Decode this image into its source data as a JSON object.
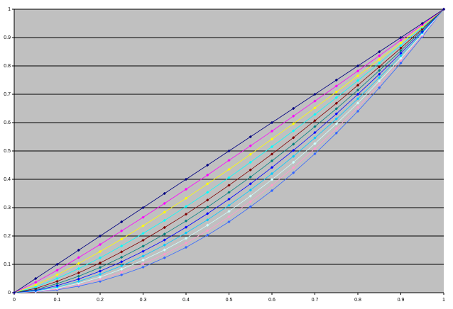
{
  "chart_data": {
    "type": "line",
    "x": [
      0,
      0.05,
      0.1,
      0.15,
      0.2,
      0.25,
      0.3,
      0.35,
      0.4,
      0.45,
      0.5,
      0.55,
      0.6,
      0.65,
      0.7,
      0.75,
      0.8,
      0.85,
      0.9,
      0.95,
      1
    ],
    "xlim": [
      0,
      1
    ],
    "xticks": [
      0,
      0.1,
      0.2,
      0.3,
      0.4,
      0.5,
      0.6,
      0.7,
      0.8,
      0.9,
      1
    ],
    "ylim": [
      0,
      1
    ],
    "yticks": [
      0,
      0.1,
      0.2,
      0.3,
      0.4,
      0.5,
      0.6,
      0.7,
      0.8,
      0.9,
      1
    ],
    "grid": true,
    "background": "#c0c0c0",
    "series": [
      {
        "color": "#000080",
        "values": [
          0,
          0.05,
          0.1,
          0.15,
          0.2,
          0.25,
          0.3,
          0.35,
          0.4,
          0.45,
          0.5,
          0.55,
          0.6,
          0.65,
          0.7,
          0.75,
          0.8,
          0.85,
          0.9,
          0.95,
          1
        ]
      },
      {
        "color": "#ff00ff",
        "values": [
          0,
          0.037,
          0.079,
          0.124,
          0.17,
          0.218,
          0.266,
          0.315,
          0.365,
          0.415,
          0.467,
          0.518,
          0.57,
          0.623,
          0.676,
          0.729,
          0.782,
          0.836,
          0.891,
          0.945,
          1
        ]
      },
      {
        "color": "#ffff00",
        "values": [
          0,
          0.027,
          0.063,
          0.103,
          0.145,
          0.189,
          0.236,
          0.284,
          0.333,
          0.384,
          0.435,
          0.488,
          0.542,
          0.596,
          0.652,
          0.708,
          0.765,
          0.823,
          0.881,
          0.94,
          1
        ]
      },
      {
        "color": "#00ffff",
        "values": [
          0,
          0.02,
          0.05,
          0.085,
          0.123,
          0.165,
          0.209,
          0.255,
          0.304,
          0.354,
          0.406,
          0.46,
          0.515,
          0.571,
          0.629,
          0.688,
          0.748,
          0.81,
          0.872,
          0.936,
          1
        ]
      },
      {
        "color": "#800000",
        "values": [
          0,
          0.015,
          0.04,
          0.07,
          0.105,
          0.144,
          0.185,
          0.23,
          0.277,
          0.327,
          0.379,
          0.433,
          0.489,
          0.547,
          0.607,
          0.668,
          0.732,
          0.797,
          0.863,
          0.931,
          1
        ]
      },
      {
        "color": "#008080",
        "values": [
          0,
          0.011,
          0.032,
          0.058,
          0.089,
          0.125,
          0.164,
          0.207,
          0.253,
          0.302,
          0.354,
          0.408,
          0.465,
          0.524,
          0.586,
          0.649,
          0.715,
          0.784,
          0.854,
          0.926,
          1
        ]
      },
      {
        "color": "#0000ff",
        "values": [
          0,
          0.008,
          0.025,
          0.048,
          0.076,
          0.109,
          0.146,
          0.186,
          0.231,
          0.279,
          0.33,
          0.384,
          0.442,
          0.502,
          0.565,
          0.631,
          0.7,
          0.771,
          0.845,
          0.921,
          1
        ]
      },
      {
        "color": "#00ccff",
        "values": [
          0,
          0.006,
          0.02,
          0.04,
          0.065,
          0.095,
          0.129,
          0.168,
          0.211,
          0.257,
          0.308,
          0.362,
          0.42,
          0.481,
          0.546,
          0.613,
          0.684,
          0.759,
          0.836,
          0.917,
          1
        ]
      },
      {
        "color": "#ccffff",
        "values": [
          0,
          0.005,
          0.016,
          0.033,
          0.055,
          0.083,
          0.115,
          0.151,
          0.192,
          0.238,
          0.287,
          0.341,
          0.399,
          0.46,
          0.526,
          0.596,
          0.669,
          0.747,
          0.827,
          0.912,
          1
        ]
      },
      {
        "color": "#ff99cc",
        "values": [
          0,
          0.003,
          0.013,
          0.027,
          0.047,
          0.072,
          0.102,
          0.136,
          0.175,
          0.219,
          0.268,
          0.321,
          0.379,
          0.441,
          0.508,
          0.579,
          0.654,
          0.735,
          0.819,
          0.907,
          1
        ]
      },
      {
        "color": "#3366ff",
        "values": [
          0,
          0.003,
          0.01,
          0.023,
          0.04,
          0.063,
          0.09,
          0.123,
          0.16,
          0.203,
          0.25,
          0.303,
          0.36,
          0.423,
          0.49,
          0.563,
          0.64,
          0.723,
          0.81,
          0.903,
          1
        ]
      }
    ]
  }
}
